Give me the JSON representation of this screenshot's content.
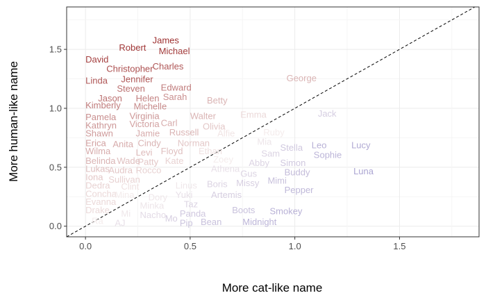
{
  "chart_data": {
    "type": "scatter",
    "title": "",
    "xlabel": "More cat-like name",
    "ylabel": "More human-like name",
    "xlim": [
      -0.09,
      1.88
    ],
    "ylim": [
      -0.09,
      1.86
    ],
    "x_ticks": [
      "0.0",
      "0.5",
      "1.0",
      "1.5"
    ],
    "x_tick_values": [
      0.0,
      0.5,
      1.0,
      1.5
    ],
    "y_ticks": [
      "0.0",
      "0.5",
      "1.0",
      "1.5"
    ],
    "y_tick_values": [
      0.0,
      0.5,
      1.0,
      1.5
    ],
    "grid": true,
    "reference_line": "y = x (dashed)",
    "color_scale": {
      "human_like": "#9e3131",
      "neutral": "#f4ecec",
      "cat_like": "#7b75c0"
    },
    "points": [
      {
        "label": "James",
        "x": 0.32,
        "y": 1.55,
        "c": 0.0
      },
      {
        "label": "Robert",
        "x": 0.16,
        "y": 1.49,
        "c": 0.02
      },
      {
        "label": "Michael",
        "x": 0.35,
        "y": 1.46,
        "c": 0.03
      },
      {
        "label": "David",
        "x": 0.0,
        "y": 1.39,
        "c": 0.04
      },
      {
        "label": "Charles",
        "x": 0.32,
        "y": 1.33,
        "c": 0.1
      },
      {
        "label": "Christopher",
        "x": 0.1,
        "y": 1.31,
        "c": 0.08
      },
      {
        "label": "Jennifer",
        "x": 0.17,
        "y": 1.22,
        "c": 0.1
      },
      {
        "label": "Linda",
        "x": 0.0,
        "y": 1.21,
        "c": 0.1
      },
      {
        "label": "George",
        "x": 0.96,
        "y": 1.23,
        "c": 0.35
      },
      {
        "label": "Edward",
        "x": 0.36,
        "y": 1.15,
        "c": 0.2
      },
      {
        "label": "Steven",
        "x": 0.15,
        "y": 1.14,
        "c": 0.17
      },
      {
        "label": "Sarah",
        "x": 0.37,
        "y": 1.07,
        "c": 0.25
      },
      {
        "label": "Jason",
        "x": 0.06,
        "y": 1.06,
        "c": 0.17
      },
      {
        "label": "Helen",
        "x": 0.24,
        "y": 1.06,
        "c": 0.22
      },
      {
        "label": "Betty",
        "x": 0.58,
        "y": 1.04,
        "c": 0.35
      },
      {
        "label": "Kimberly",
        "x": 0.0,
        "y": 1.0,
        "c": 0.2
      },
      {
        "label": "Michelle",
        "x": 0.23,
        "y": 0.99,
        "c": 0.24
      },
      {
        "label": "Jack",
        "x": 1.11,
        "y": 0.93,
        "c": 0.63
      },
      {
        "label": "Emma",
        "x": 0.74,
        "y": 0.92,
        "c": 0.45
      },
      {
        "label": "Virginia",
        "x": 0.21,
        "y": 0.91,
        "c": 0.27
      },
      {
        "label": "Walter",
        "x": 0.5,
        "y": 0.91,
        "c": 0.35
      },
      {
        "label": "Pamela",
        "x": 0.0,
        "y": 0.9,
        "c": 0.25
      },
      {
        "label": "Carl",
        "x": 0.36,
        "y": 0.85,
        "c": 0.33
      },
      {
        "label": "Victoria",
        "x": 0.21,
        "y": 0.84,
        "c": 0.3
      },
      {
        "label": "Olivia",
        "x": 0.56,
        "y": 0.82,
        "c": 0.4
      },
      {
        "label": "Kathryn",
        "x": 0.0,
        "y": 0.83,
        "c": 0.27
      },
      {
        "label": "Russell",
        "x": 0.4,
        "y": 0.77,
        "c": 0.35
      },
      {
        "label": "Jamie",
        "x": 0.24,
        "y": 0.76,
        "c": 0.33
      },
      {
        "label": "Shawn",
        "x": 0.0,
        "y": 0.76,
        "c": 0.28
      },
      {
        "label": "Alfie",
        "x": 0.63,
        "y": 0.76,
        "c": 0.48
      },
      {
        "label": "Ruby",
        "x": 0.85,
        "y": 0.77,
        "c": 0.5
      },
      {
        "label": "Mia",
        "x": 0.82,
        "y": 0.69,
        "c": 0.53
      },
      {
        "label": "Norman",
        "x": 0.44,
        "y": 0.68,
        "c": 0.4
      },
      {
        "label": "Cindy",
        "x": 0.25,
        "y": 0.68,
        "c": 0.35
      },
      {
        "label": "Anita",
        "x": 0.13,
        "y": 0.67,
        "c": 0.33
      },
      {
        "label": "Erica",
        "x": 0.0,
        "y": 0.68,
        "c": 0.3
      },
      {
        "label": "Leo",
        "x": 1.08,
        "y": 0.66,
        "c": 0.75
      },
      {
        "label": "Lucy",
        "x": 1.27,
        "y": 0.66,
        "c": 0.78
      },
      {
        "label": "Stella",
        "x": 0.93,
        "y": 0.64,
        "c": 0.65
      },
      {
        "label": "Floyd",
        "x": 0.36,
        "y": 0.61,
        "c": 0.38
      },
      {
        "label": "Levi",
        "x": 0.24,
        "y": 0.6,
        "c": 0.37
      },
      {
        "label": "Ethan",
        "x": 0.54,
        "y": 0.61,
        "c": 0.47
      },
      {
        "label": "Wilma",
        "x": 0.0,
        "y": 0.61,
        "c": 0.33
      },
      {
        "label": "Sophie",
        "x": 1.09,
        "y": 0.58,
        "c": 0.73
      },
      {
        "label": "Sam",
        "x": 0.84,
        "y": 0.59,
        "c": 0.6
      },
      {
        "label": "Kate",
        "x": 0.38,
        "y": 0.53,
        "c": 0.43
      },
      {
        "label": "Patty",
        "x": 0.25,
        "y": 0.52,
        "c": 0.4
      },
      {
        "label": "Wade",
        "x": 0.15,
        "y": 0.53,
        "c": 0.38
      },
      {
        "label": "Belinda",
        "x": 0.0,
        "y": 0.53,
        "c": 0.35
      },
      {
        "label": "Zoey",
        "x": 0.61,
        "y": 0.54,
        "c": 0.5
      },
      {
        "label": "Abby",
        "x": 0.78,
        "y": 0.51,
        "c": 0.6
      },
      {
        "label": "Simon",
        "x": 0.93,
        "y": 0.51,
        "c": 0.65
      },
      {
        "label": "Luna",
        "x": 1.28,
        "y": 0.44,
        "c": 0.8
      },
      {
        "label": "Athena",
        "x": 0.6,
        "y": 0.46,
        "c": 0.55
      },
      {
        "label": "Rocco",
        "x": 0.24,
        "y": 0.45,
        "c": 0.43
      },
      {
        "label": "Audra",
        "x": 0.11,
        "y": 0.45,
        "c": 0.4
      },
      {
        "label": "Lukas",
        "x": 0.0,
        "y": 0.46,
        "c": 0.38
      },
      {
        "label": "Gus",
        "x": 0.74,
        "y": 0.42,
        "c": 0.6
      },
      {
        "label": "Buddy",
        "x": 0.95,
        "y": 0.43,
        "c": 0.7
      },
      {
        "label": "Iona",
        "x": 0.0,
        "y": 0.39,
        "c": 0.4
      },
      {
        "label": "Sullivan",
        "x": 0.11,
        "y": 0.37,
        "c": 0.43
      },
      {
        "label": "Mimi",
        "x": 0.87,
        "y": 0.36,
        "c": 0.68
      },
      {
        "label": "Missy",
        "x": 0.72,
        "y": 0.34,
        "c": 0.62
      },
      {
        "label": "Boris",
        "x": 0.58,
        "y": 0.33,
        "c": 0.6
      },
      {
        "label": "Linus",
        "x": 0.43,
        "y": 0.32,
        "c": 0.52
      },
      {
        "label": "Dedra",
        "x": 0.0,
        "y": 0.32,
        "c": 0.43
      },
      {
        "label": "Clint",
        "x": 0.17,
        "y": 0.31,
        "c": 0.47
      },
      {
        "label": "Pepper",
        "x": 0.95,
        "y": 0.28,
        "c": 0.72
      },
      {
        "label": "Yuki",
        "x": 0.43,
        "y": 0.24,
        "c": 0.55
      },
      {
        "label": "Artemis",
        "x": 0.6,
        "y": 0.24,
        "c": 0.62
      },
      {
        "label": "Concha",
        "x": 0.0,
        "y": 0.25,
        "c": 0.45
      },
      {
        "label": "Mina",
        "x": 0.14,
        "y": 0.24,
        "c": 0.5
      },
      {
        "label": "Dory",
        "x": 0.3,
        "y": 0.22,
        "c": 0.52
      },
      {
        "label": "Evanna",
        "x": 0.0,
        "y": 0.18,
        "c": 0.45
      },
      {
        "label": "Minka",
        "x": 0.26,
        "y": 0.15,
        "c": 0.53
      },
      {
        "label": "Taz",
        "x": 0.47,
        "y": 0.16,
        "c": 0.6
      },
      {
        "label": "Boots",
        "x": 0.7,
        "y": 0.11,
        "c": 0.68
      },
      {
        "label": "Smokey",
        "x": 0.88,
        "y": 0.1,
        "c": 0.75
      },
      {
        "label": "Drake",
        "x": 0.0,
        "y": 0.11,
        "c": 0.45
      },
      {
        "label": "Nacho",
        "x": 0.26,
        "y": 0.07,
        "c": 0.57
      },
      {
        "label": "Mi",
        "x": 0.17,
        "y": 0.08,
        "c": 0.52
      },
      {
        "label": "Panda",
        "x": 0.45,
        "y": 0.08,
        "c": 0.65
      },
      {
        "label": "Mo",
        "x": 0.38,
        "y": 0.04,
        "c": 0.62
      },
      {
        "label": "Midnight",
        "x": 0.75,
        "y": 0.01,
        "c": 0.73
      },
      {
        "label": "Bean",
        "x": 0.55,
        "y": 0.01,
        "c": 0.68
      },
      {
        "label": "Pip",
        "x": 0.45,
        "y": 0.0,
        "c": 0.67
      },
      {
        "label": "AJ",
        "x": 0.14,
        "y": 0.0,
        "c": 0.55
      },
      {
        "label": "Ra",
        "x": 0.03,
        "y": 0.02,
        "c": 0.5
      }
    ]
  }
}
